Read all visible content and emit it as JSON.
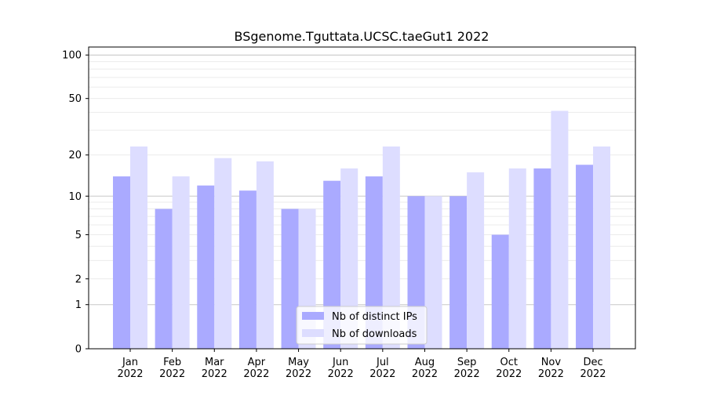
{
  "chart_data": {
    "type": "bar",
    "title": "BSgenome.Tguttata.UCSC.taeGut1 2022",
    "yscale": "log10(1+y)",
    "ylim": [
      0,
      113
    ],
    "yticks": [
      0,
      1,
      2,
      5,
      10,
      20,
      50,
      100
    ],
    "grid": true,
    "legend_position": "bottom-center",
    "categories": [
      "Jan\n2022",
      "Feb\n2022",
      "Mar\n2022",
      "Apr\n2022",
      "May\n2022",
      "Jun\n2022",
      "Jul\n2022",
      "Aug\n2022",
      "Sep\n2022",
      "Oct\n2022",
      "Nov\n2022",
      "Dec\n2022"
    ],
    "series": [
      {
        "name": "Nb of distinct IPs",
        "color": "#aaaaff",
        "values": [
          14,
          8,
          12,
          11,
          8,
          13,
          14,
          10,
          10,
          5,
          16,
          17
        ]
      },
      {
        "name": "Nb of downloads",
        "color": "#ddddff",
        "values": [
          23,
          14,
          19,
          18,
          8,
          16,
          23,
          10,
          15,
          16,
          41,
          23
        ]
      }
    ]
  }
}
